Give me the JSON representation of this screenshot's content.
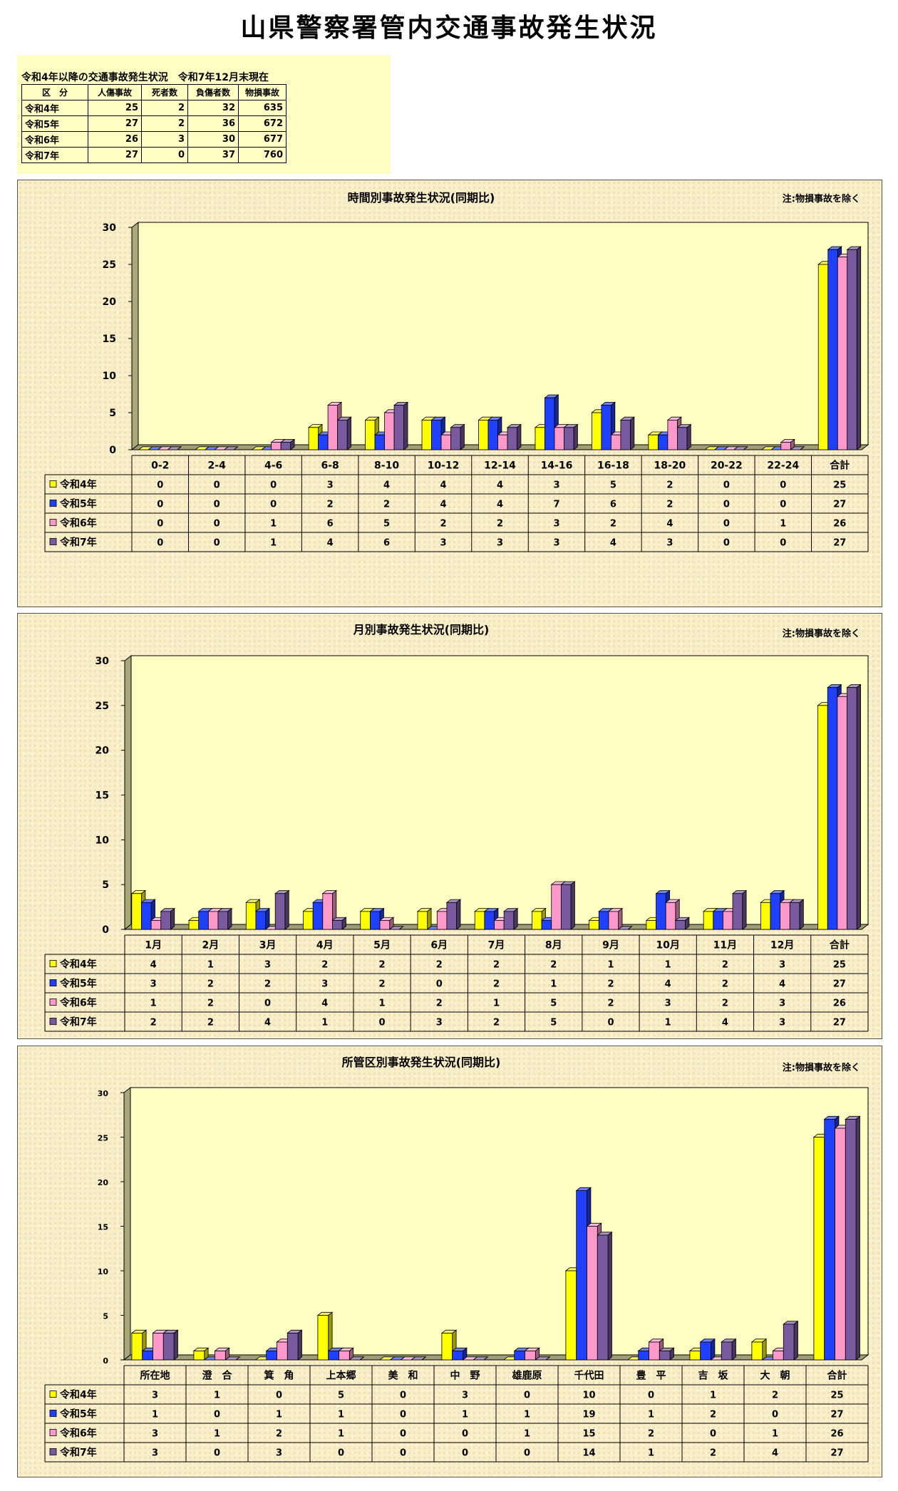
{
  "page": {
    "title": "山県警察署管内交通事故発生状況"
  },
  "summary": {
    "caption": "令和4年以降の交通事故発生状況　令和7年12月末現在",
    "headers": [
      "区　分",
      "人傷事故",
      "死者数",
      "負傷者数",
      "物損事故"
    ],
    "rows": [
      [
        "令和4年",
        "25",
        "2",
        "32",
        "635"
      ],
      [
        "令和5年",
        "27",
        "2",
        "36",
        "672"
      ],
      [
        "令和6年",
        "26",
        "3",
        "30",
        "677"
      ],
      [
        "令和7年",
        "27",
        "0",
        "37",
        "760"
      ]
    ]
  },
  "colors": {
    "series": [
      "#ffff00",
      "#2040ff",
      "#ff99cc",
      "#7a5a9e"
    ],
    "plot_bg": "#ffffc4"
  },
  "chart_data": [
    {
      "type": "bar",
      "title": "時間別事故発生状況(同期比)",
      "note": "注:物損事故を除く",
      "categories": [
        "0-2",
        "2-4",
        "4-6",
        "6-8",
        "8-10",
        "10-12",
        "12-14",
        "14-16",
        "16-18",
        "18-20",
        "20-22",
        "22-24",
        "合計"
      ],
      "series": [
        {
          "name": "令和4年",
          "values": [
            0,
            0,
            0,
            3,
            4,
            4,
            4,
            3,
            5,
            2,
            0,
            0,
            25
          ]
        },
        {
          "name": "令和5年",
          "values": [
            0,
            0,
            0,
            2,
            2,
            4,
            4,
            7,
            6,
            2,
            0,
            0,
            27
          ]
        },
        {
          "name": "令和6年",
          "values": [
            0,
            0,
            1,
            6,
            5,
            2,
            2,
            3,
            2,
            4,
            0,
            1,
            26
          ]
        },
        {
          "name": "令和7年",
          "values": [
            0,
            0,
            1,
            4,
            6,
            3,
            3,
            3,
            4,
            3,
            0,
            0,
            27
          ]
        }
      ],
      "yticks": [
        0,
        5,
        10,
        15,
        20,
        25,
        30
      ],
      "ylim": [
        0,
        30
      ],
      "grid": false,
      "legend": "data-table"
    },
    {
      "type": "bar",
      "title": "月別事故発生状況(同期比)",
      "note": "注:物損事故を除く",
      "categories": [
        "1月",
        "2月",
        "3月",
        "4月",
        "5月",
        "6月",
        "7月",
        "8月",
        "9月",
        "10月",
        "11月",
        "12月",
        "合計"
      ],
      "series": [
        {
          "name": "令和4年",
          "values": [
            4,
            1,
            3,
            2,
            2,
            2,
            2,
            2,
            1,
            1,
            2,
            3,
            25
          ]
        },
        {
          "name": "令和5年",
          "values": [
            3,
            2,
            2,
            3,
            2,
            0,
            2,
            1,
            2,
            4,
            2,
            4,
            27
          ]
        },
        {
          "name": "令和6年",
          "values": [
            1,
            2,
            0,
            4,
            1,
            2,
            1,
            5,
            2,
            3,
            2,
            3,
            26
          ]
        },
        {
          "name": "令和7年",
          "values": [
            2,
            2,
            4,
            1,
            0,
            3,
            2,
            5,
            0,
            1,
            4,
            3,
            27
          ]
        }
      ],
      "yticks": [
        0,
        5,
        10,
        15,
        20,
        25,
        30
      ],
      "ylim": [
        0,
        30
      ],
      "grid": false,
      "legend": "data-table"
    },
    {
      "type": "bar",
      "title": "所管区別事故発生状況(同期比)",
      "note": "注:物損事故を除く",
      "categories": [
        "所在地",
        "澄　合",
        "箕　角",
        "上本郷",
        "美　和",
        "中　野",
        "雄鹿原",
        "千代田",
        "豊　平",
        "吉　坂",
        "大　朝",
        "合計"
      ],
      "series": [
        {
          "name": "令和4年",
          "values": [
            3,
            1,
            0,
            5,
            0,
            3,
            0,
            10,
            0,
            1,
            2,
            25
          ]
        },
        {
          "name": "令和5年",
          "values": [
            1,
            0,
            1,
            1,
            0,
            1,
            1,
            19,
            1,
            2,
            0,
            27
          ]
        },
        {
          "name": "令和6年",
          "values": [
            3,
            1,
            2,
            1,
            0,
            0,
            1,
            15,
            2,
            0,
            1,
            26
          ]
        },
        {
          "name": "令和7年",
          "values": [
            3,
            0,
            3,
            0,
            0,
            0,
            0,
            14,
            1,
            2,
            4,
            27
          ]
        }
      ],
      "yticks": [
        0,
        5,
        10,
        15,
        20,
        25,
        30
      ],
      "ylim": [
        0,
        30
      ],
      "grid": false,
      "legend": "data-table"
    }
  ]
}
